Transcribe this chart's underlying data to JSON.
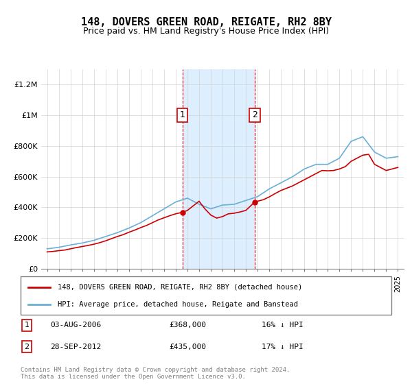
{
  "title": "148, DOVERS GREEN ROAD, REIGATE, RH2 8BY",
  "subtitle": "Price paid vs. HM Land Registry's House Price Index (HPI)",
  "legend_line1": "148, DOVERS GREEN ROAD, REIGATE, RH2 8BY (detached house)",
  "legend_line2": "HPI: Average price, detached house, Reigate and Banstead",
  "transaction1_label": "1",
  "transaction1_date": "03-AUG-2006",
  "transaction1_price": "£368,000",
  "transaction1_hpi": "16% ↓ HPI",
  "transaction2_label": "2",
  "transaction2_date": "28-SEP-2012",
  "transaction2_price": "£435,000",
  "transaction2_hpi": "17% ↓ HPI",
  "footnote": "Contains HM Land Registry data © Crown copyright and database right 2024.\nThis data is licensed under the Open Government Licence v3.0.",
  "ylim": [
    0,
    1300000
  ],
  "yticks": [
    0,
    200000,
    400000,
    600000,
    800000,
    1000000,
    1200000
  ],
  "ytick_labels": [
    "£0",
    "£200K",
    "£400K",
    "£600K",
    "£800K",
    "£1M",
    "£1.2M"
  ],
  "hpi_color": "#6baed6",
  "price_color": "#cc0000",
  "shade_color": "#ddeeff",
  "dashed_color": "#cc0000",
  "transaction1_x": 2006.58,
  "transaction2_x": 2012.75,
  "background_color": "#ffffff",
  "hpi_years": [
    1995,
    1996,
    1997,
    1998,
    1999,
    2000,
    2001,
    2002,
    2003,
    2004,
    2005,
    2006,
    2007,
    2008,
    2009,
    2010,
    2011,
    2012,
    2013,
    2014,
    2015,
    2016,
    2017,
    2018,
    2019,
    2020,
    2021,
    2022,
    2023,
    2024,
    2025
  ],
  "hpi_values": [
    130000,
    140000,
    155000,
    168000,
    185000,
    210000,
    235000,
    265000,
    300000,
    345000,
    390000,
    435000,
    460000,
    420000,
    390000,
    415000,
    420000,
    445000,
    470000,
    520000,
    560000,
    600000,
    650000,
    680000,
    680000,
    720000,
    830000,
    860000,
    760000,
    720000,
    730000
  ],
  "price_years": [
    1995.0,
    1995.5,
    1996.0,
    1996.5,
    1997.0,
    1997.5,
    1998.0,
    1998.5,
    1999.0,
    1999.5,
    2000.0,
    2000.5,
    2001.0,
    2001.5,
    2002.0,
    2002.5,
    2003.0,
    2003.5,
    2004.0,
    2004.5,
    2005.0,
    2005.5,
    2006.0,
    2006.58,
    2007.0,
    2007.5,
    2008.0,
    2008.5,
    2009.0,
    2009.5,
    2010.0,
    2010.5,
    2011.0,
    2011.5,
    2012.0,
    2012.75,
    2013.0,
    2013.5,
    2014.0,
    2014.5,
    2015.0,
    2015.5,
    2016.0,
    2016.5,
    2017.0,
    2017.5,
    2018.0,
    2018.5,
    2019.0,
    2019.5,
    2020.0,
    2020.5,
    2021.0,
    2021.5,
    2022.0,
    2022.5,
    2023.0,
    2023.5,
    2024.0,
    2024.5,
    2025.0
  ],
  "price_values": [
    110000,
    113000,
    118000,
    122000,
    130000,
    138000,
    145000,
    152000,
    160000,
    170000,
    182000,
    196000,
    210000,
    222000,
    238000,
    252000,
    268000,
    282000,
    300000,
    318000,
    332000,
    346000,
    358000,
    368000,
    380000,
    410000,
    440000,
    390000,
    350000,
    330000,
    340000,
    358000,
    362000,
    370000,
    380000,
    435000,
    440000,
    450000,
    468000,
    490000,
    510000,
    525000,
    540000,
    560000,
    580000,
    600000,
    620000,
    640000,
    638000,
    640000,
    650000,
    665000,
    700000,
    720000,
    740000,
    745000,
    680000,
    660000,
    640000,
    650000,
    660000
  ],
  "xticks": [
    1995,
    1996,
    1997,
    1998,
    1999,
    2000,
    2001,
    2002,
    2003,
    2004,
    2005,
    2006,
    2007,
    2008,
    2009,
    2010,
    2011,
    2012,
    2013,
    2014,
    2015,
    2016,
    2017,
    2018,
    2019,
    2020,
    2021,
    2022,
    2023,
    2024,
    2025
  ]
}
